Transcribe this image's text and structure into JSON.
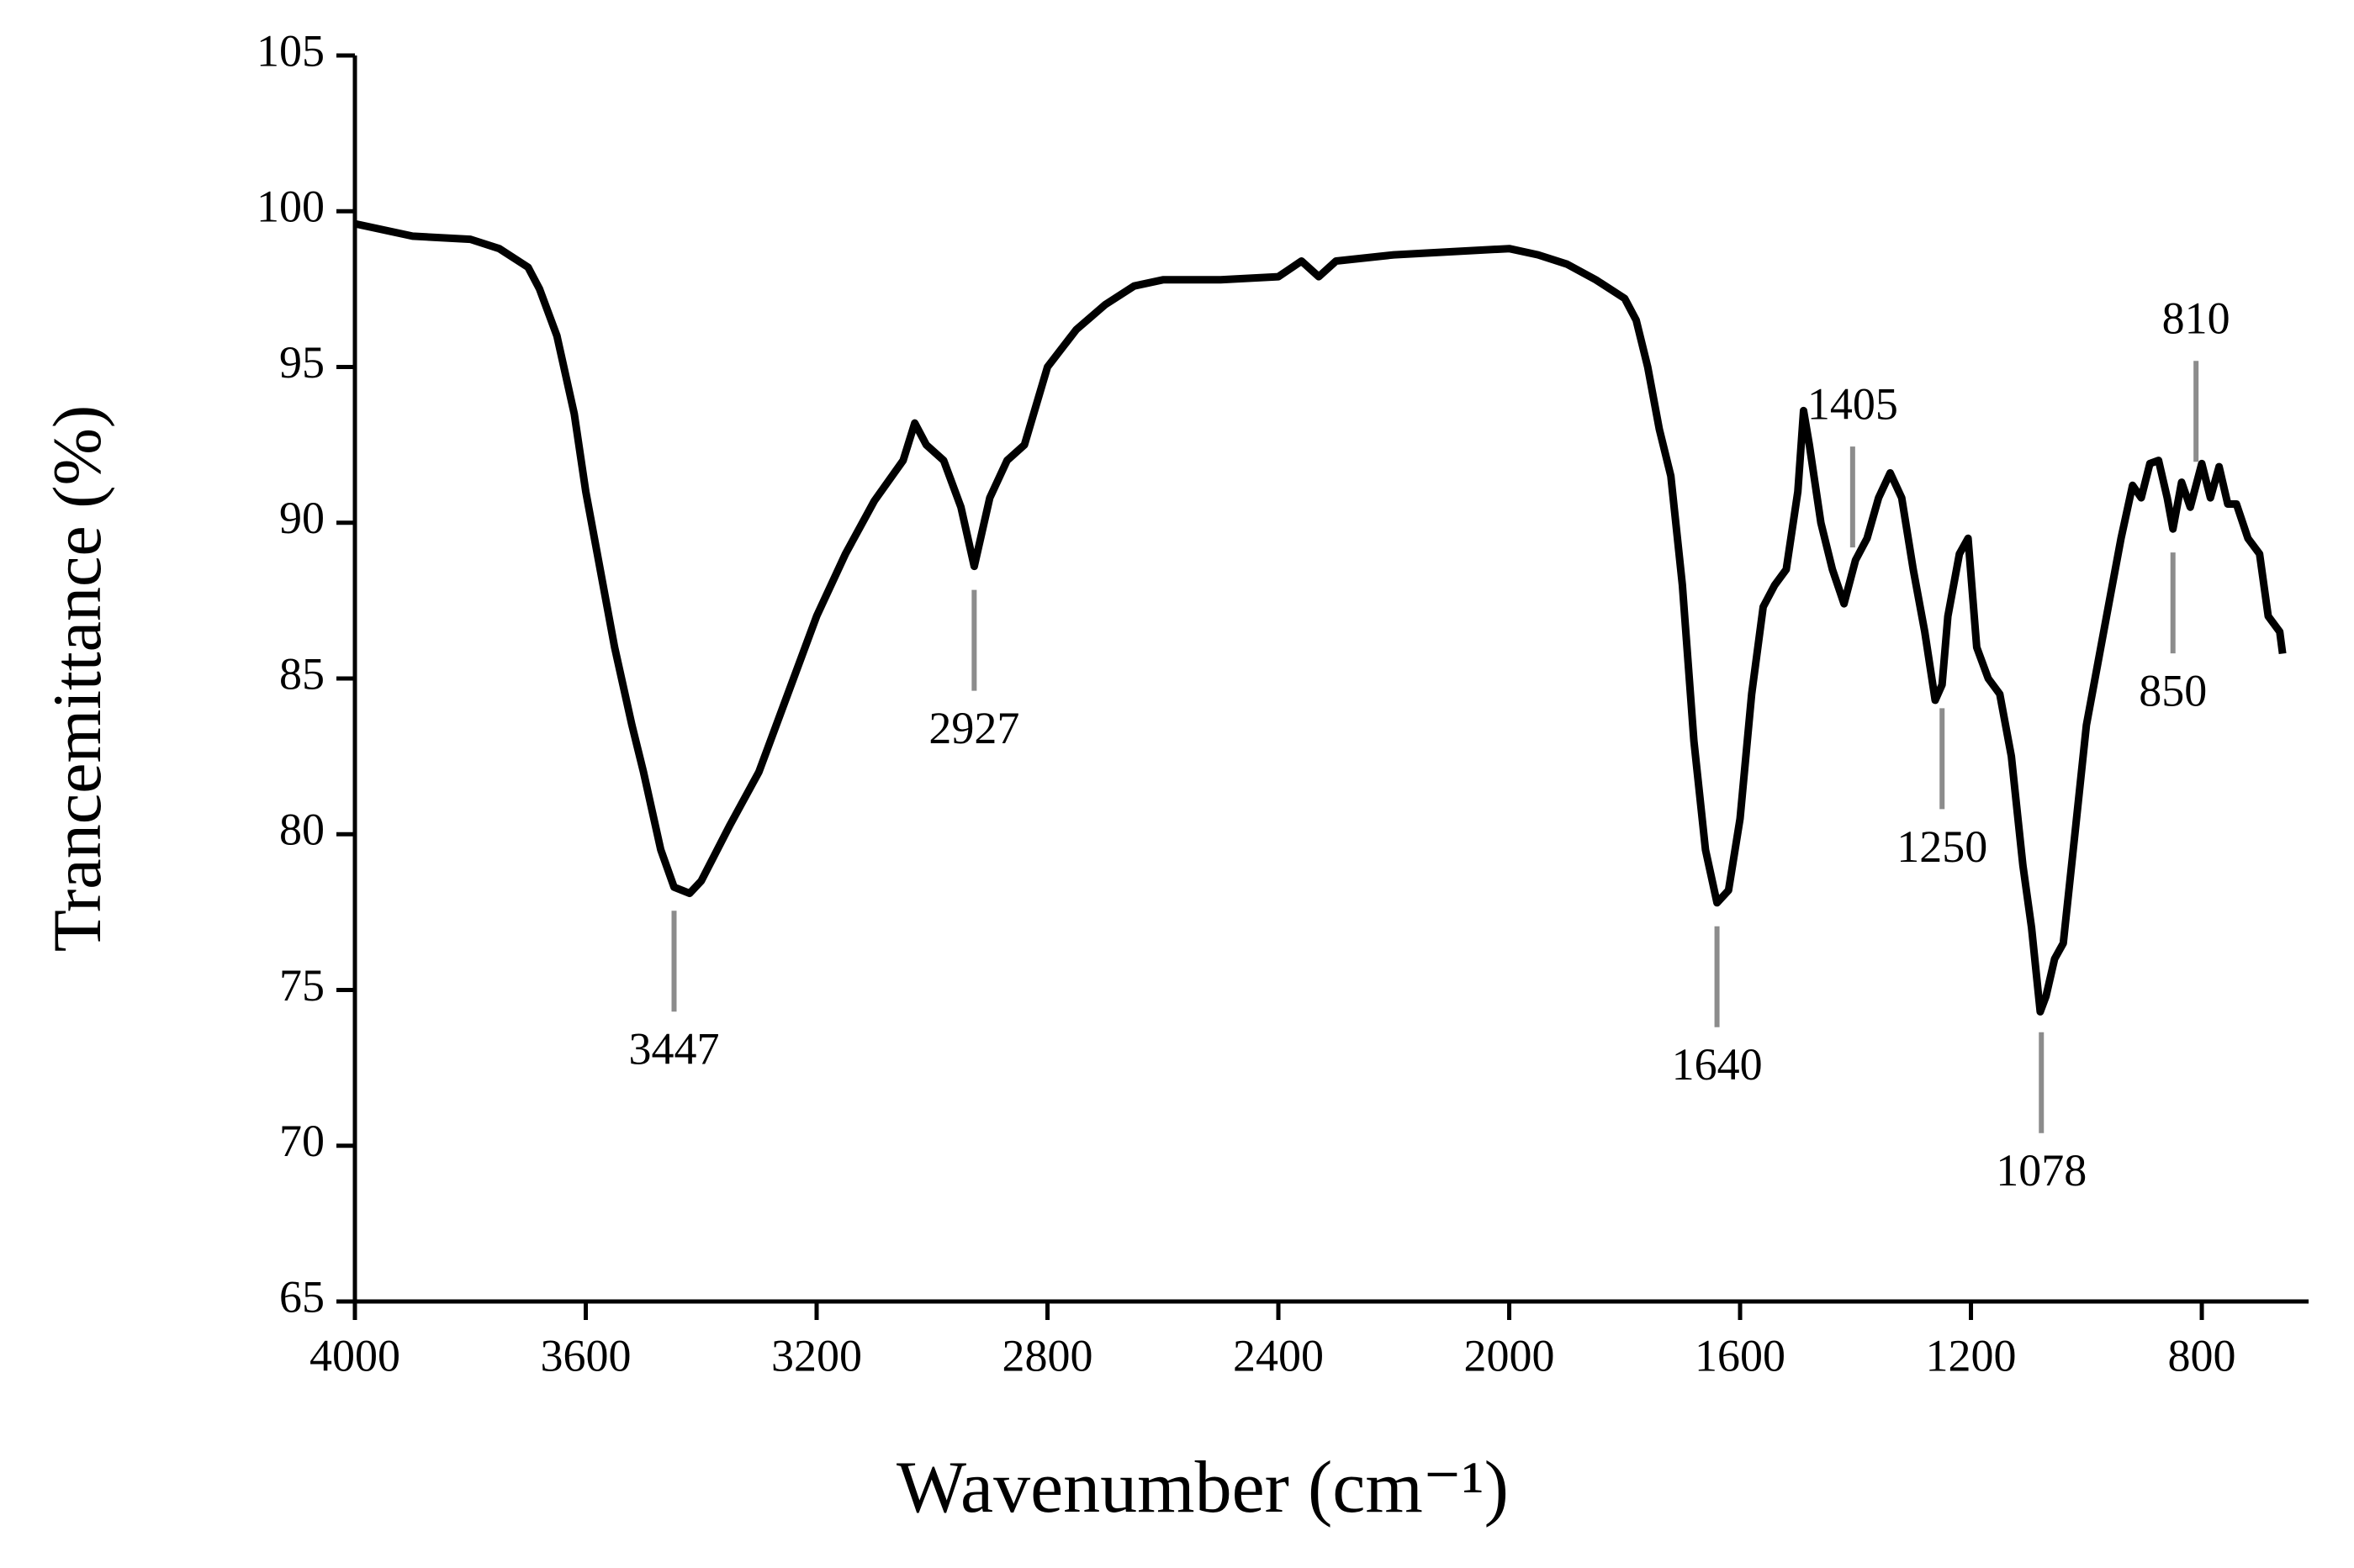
{
  "chart_data": {
    "type": "line",
    "xlabel": "Wavenumber (cm⁻¹)",
    "ylabel": "Trancemittance (%)",
    "color": "#000000",
    "x": [
      4000,
      3900,
      3800,
      3750,
      3700,
      3680,
      3650,
      3620,
      3600,
      3570,
      3550,
      3520,
      3500,
      3470,
      3447,
      3420,
      3400,
      3350,
      3300,
      3250,
      3200,
      3150,
      3100,
      3050,
      3030,
      3010,
      2980,
      2950,
      2927,
      2900,
      2870,
      2840,
      2800,
      2750,
      2700,
      2650,
      2600,
      2500,
      2400,
      2360,
      2330,
      2300,
      2200,
      2100,
      2000,
      1950,
      1900,
      1850,
      1800,
      1780,
      1760,
      1740,
      1720,
      1700,
      1680,
      1660,
      1640,
      1620,
      1600,
      1580,
      1560,
      1540,
      1520,
      1500,
      1490,
      1480,
      1460,
      1440,
      1420,
      1400,
      1380,
      1360,
      1340,
      1320,
      1300,
      1280,
      1262,
      1250,
      1240,
      1220,
      1205,
      1190,
      1170,
      1150,
      1130,
      1110,
      1095,
      1080,
      1070,
      1055,
      1040,
      1020,
      1000,
      980,
      960,
      940,
      920,
      905,
      890,
      875,
      860,
      850,
      835,
      820,
      800,
      785,
      770,
      755,
      740,
      720,
      700,
      685,
      665,
      660
    ],
    "values": [
      99.6,
      99.2,
      99.1,
      98.8,
      98.2,
      97.5,
      96,
      93.5,
      91,
      88,
      86,
      83.5,
      82,
      79.5,
      78.3,
      78.1,
      78.5,
      80.3,
      82,
      84.5,
      87,
      89,
      90.7,
      92,
      93.2,
      92.5,
      92,
      90.5,
      88.6,
      90.8,
      92,
      92.5,
      95,
      96.2,
      97,
      97.6,
      97.8,
      97.8,
      97.9,
      98.4,
      97.9,
      98.4,
      98.6,
      98.7,
      98.8,
      98.6,
      98.3,
      97.8,
      97.2,
      96.5,
      95,
      93,
      91.5,
      88,
      83,
      79.5,
      77.8,
      78.2,
      80.5,
      84.5,
      87.3,
      88,
      88.5,
      91,
      93.6,
      92.5,
      90,
      88.5,
      87.4,
      88.8,
      89.5,
      90.8,
      91.6,
      90.8,
      88.5,
      86.5,
      84.3,
      84.8,
      87,
      89,
      89.5,
      86,
      85,
      84.5,
      82.5,
      79,
      77,
      74.3,
      74.8,
      76,
      76.5,
      80,
      83.5,
      85.5,
      87.5,
      89.5,
      91.2,
      90.8,
      91.9,
      92,
      90.8,
      89.8,
      91.3,
      90.5,
      91.9,
      90.8,
      91.8,
      90.6,
      90.6,
      89.5,
      89,
      87,
      86.5,
      85.8
    ],
    "xlim": [
      4000,
      615
    ],
    "ylim": [
      65,
      105
    ],
    "xticks": [
      4000,
      3600,
      3200,
      2800,
      2400,
      2000,
      1600,
      1200,
      800
    ],
    "yticks": [
      65,
      70,
      75,
      80,
      85,
      90,
      95,
      100,
      105
    ],
    "annotations": [
      {
        "value": 3447,
        "position": "below"
      },
      {
        "value": 2927,
        "position": "below"
      },
      {
        "value": 1640,
        "position": "below"
      },
      {
        "value": 1405,
        "position": "above"
      },
      {
        "value": 1250,
        "position": "below"
      },
      {
        "value": 1078,
        "position": "below"
      },
      {
        "value": 850,
        "position": "below"
      },
      {
        "value": 810,
        "position": "above"
      }
    ]
  }
}
